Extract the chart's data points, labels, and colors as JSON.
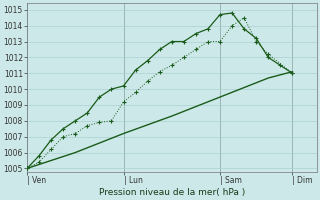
{
  "bg_color": "#cce8e8",
  "grid_color": "#aad0d0",
  "line_color": "#1a5c1a",
  "title": "Pression niveau de la mer( hPa )",
  "ylabel_ticks": [
    1005,
    1006,
    1007,
    1008,
    1009,
    1010,
    1011,
    1012,
    1013,
    1014,
    1015
  ],
  "ylim": [
    1004.8,
    1015.4
  ],
  "x_tick_labels": [
    "| Ven",
    "| Lun",
    "| Sam",
    "| Dim"
  ],
  "x_tick_positions": [
    0,
    8,
    16,
    22
  ],
  "xlim": [
    0,
    24
  ],
  "line1_x": [
    0,
    1,
    2,
    3,
    4,
    5,
    6,
    7,
    8,
    9,
    10,
    11,
    12,
    13,
    14,
    15,
    16,
    17,
    18,
    19,
    20,
    22
  ],
  "line1_y": [
    1005.0,
    1005.4,
    1006.2,
    1007.0,
    1007.2,
    1007.7,
    1007.9,
    1008.0,
    1009.2,
    1009.8,
    1010.5,
    1011.1,
    1011.5,
    1012.0,
    1012.5,
    1013.0,
    1013.0,
    1014.0,
    1014.5,
    1013.0,
    1012.2,
    1011.0
  ],
  "line2_x": [
    0,
    1,
    2,
    3,
    4,
    5,
    6,
    7,
    8,
    9,
    10,
    11,
    12,
    13,
    14,
    15,
    16,
    17,
    18,
    19,
    20,
    21,
    22
  ],
  "line2_y": [
    1005.0,
    1005.8,
    1006.8,
    1007.5,
    1008.0,
    1008.5,
    1009.5,
    1010.0,
    1010.2,
    1011.2,
    1011.8,
    1012.5,
    1013.0,
    1013.0,
    1013.5,
    1013.8,
    1014.7,
    1014.8,
    1013.8,
    1013.2,
    1012.0,
    1011.5,
    1011.0
  ],
  "line3_x": [
    0,
    4,
    8,
    12,
    16,
    20,
    22
  ],
  "line3_y": [
    1005.0,
    1006.0,
    1007.2,
    1008.3,
    1009.5,
    1010.7,
    1011.1
  ]
}
